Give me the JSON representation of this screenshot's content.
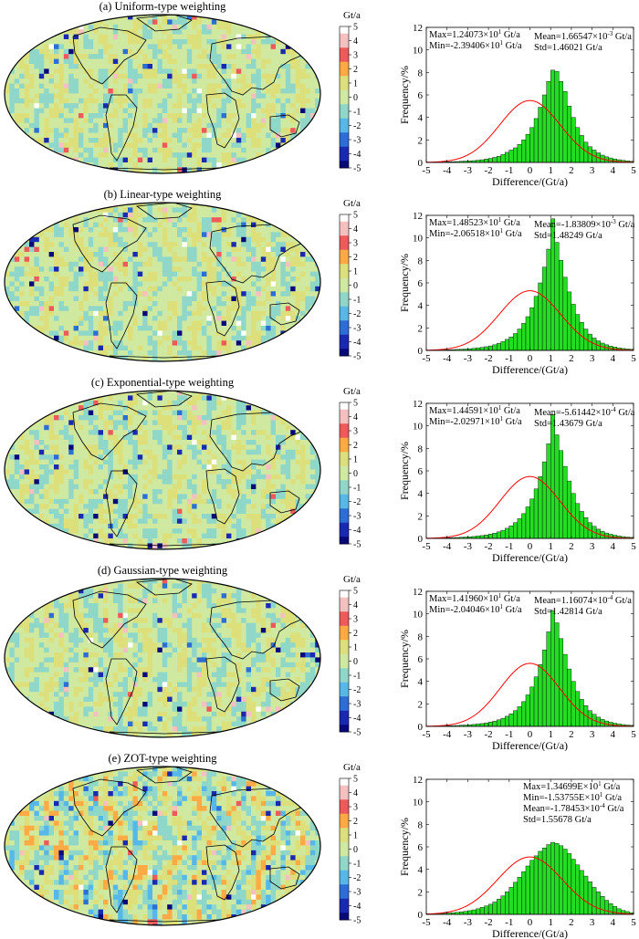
{
  "colorbar": {
    "unit": "Gt/a",
    "ticks": [
      "5",
      "4",
      "3",
      "2",
      "1",
      "0",
      "-1",
      "-2",
      "-3",
      "-4",
      "-5"
    ],
    "colors": [
      "#ffffff",
      "#f7c0c0",
      "#ee5a5a",
      "#ffaa44",
      "#dde07a",
      "#cfe9a0",
      "#8fd7c8",
      "#55b8e8",
      "#2b6fd6",
      "#1a2ab0",
      "#08087a"
    ]
  },
  "histogram_common": {
    "xlabel": "Difference/(Gt/a)",
    "ylabel": "Frequency/%",
    "xticks": [
      "-5",
      "-4",
      "-3",
      "-2",
      "-1",
      "0",
      "1",
      "2",
      "3",
      "4",
      "5"
    ],
    "yticks": [
      "0",
      "2",
      "4",
      "6",
      "8",
      "10",
      "12"
    ],
    "bar_color": "#22dd22",
    "curve_color": "#ff0000"
  },
  "chart_data": [
    {
      "type": "bar",
      "panel": "a",
      "map_title": "(a) Uniform-type weighting",
      "title": "(a) Uniform-type weighting",
      "xlabel": "Difference/(Gt/a)",
      "ylabel": "Frequency/%",
      "xlim": [
        -5,
        5
      ],
      "ylim": [
        0,
        12
      ],
      "bin_width": 0.2,
      "stats": {
        "max_prefix": "Max=1.24073×10",
        "max_exp": "1",
        "max_unit": " Gt/a",
        "min_prefix": "Min=-2.39406×10",
        "min_exp": "1",
        "min_unit": " Gt/a",
        "mean_prefix": "Mean=1.66547×10",
        "mean_exp": "-3",
        "mean_unit": " Gt/a",
        "std": "Std=1.46021 Gt/a"
      },
      "stats_layout": "two-column",
      "values": [
        0.02,
        0.02,
        0.03,
        0.04,
        0.05,
        0.06,
        0.07,
        0.08,
        0.1,
        0.12,
        0.14,
        0.16,
        0.2,
        0.24,
        0.3,
        0.36,
        0.45,
        0.55,
        0.7,
        0.9,
        1.1,
        1.3,
        1.6,
        2.0,
        2.5,
        3.1,
        3.9,
        4.9,
        6.0,
        7.2,
        8.2,
        8.1,
        7.2,
        6.3,
        5.0,
        4.0,
        3.1,
        2.4,
        1.8,
        1.4,
        1.1,
        0.85,
        0.65,
        0.5,
        0.4,
        0.3,
        0.24,
        0.18,
        0.14,
        0.1
      ],
      "normal_fit": {
        "mean": 0.0,
        "std": 1.46,
        "peak": 5.5
      }
    },
    {
      "type": "bar",
      "panel": "b",
      "map_title": "(b) Linear-type weighting",
      "title": "(b) Linear-type weighting",
      "xlabel": "Difference/(Gt/a)",
      "ylabel": "Frequency/%",
      "xlim": [
        -5,
        5
      ],
      "ylim": [
        0,
        12
      ],
      "bin_width": 0.2,
      "stats": {
        "max_prefix": "Max=1.48523×10",
        "max_exp": "1",
        "max_unit": " Gt/a",
        "min_prefix": "Min=-2.06518×10",
        "min_exp": "1",
        "min_unit": " Gt/a",
        "mean_prefix": "Mean=-1.83809×10",
        "mean_exp": "-3",
        "mean_unit": " Gt/a",
        "std": "Std=1.48249 Gt/a"
      },
      "stats_layout": "two-column",
      "values": [
        0.02,
        0.03,
        0.03,
        0.04,
        0.05,
        0.06,
        0.07,
        0.09,
        0.1,
        0.12,
        0.15,
        0.18,
        0.22,
        0.27,
        0.33,
        0.4,
        0.5,
        0.62,
        0.78,
        0.98,
        1.2,
        1.5,
        1.9,
        2.4,
        3.0,
        3.8,
        4.8,
        6.0,
        7.4,
        9.0,
        11.7,
        9.6,
        8.0,
        6.5,
        5.2,
        4.1,
        3.2,
        2.5,
        1.9,
        1.45,
        1.1,
        0.85,
        0.65,
        0.5,
        0.38,
        0.3,
        0.22,
        0.17,
        0.13,
        0.1
      ],
      "normal_fit": {
        "mean": 0.0,
        "std": 1.48,
        "peak": 5.3
      }
    },
    {
      "type": "bar",
      "panel": "c",
      "map_title": "(c) Exponential-type weighting",
      "title": "(c) Exponential-type weighting",
      "xlabel": "Difference/(Gt/a)",
      "ylabel": "Frequency/%",
      "xlim": [
        -5,
        5
      ],
      "ylim": [
        0,
        12
      ],
      "bin_width": 0.2,
      "stats": {
        "max_prefix": "Max=1.44591×10",
        "max_exp": "1",
        "max_unit": " Gt/a",
        "min_prefix": "Min=-2.02971×10",
        "min_exp": "1",
        "min_unit": " Gt/a",
        "mean_prefix": "Mean=-5.61442×10",
        "mean_exp": "-4",
        "mean_unit": " Gt/a",
        "std": "Std=1.43679 Gt/a"
      },
      "stats_layout": "two-column",
      "values": [
        0.02,
        0.02,
        0.03,
        0.04,
        0.05,
        0.06,
        0.07,
        0.08,
        0.1,
        0.12,
        0.14,
        0.17,
        0.21,
        0.25,
        0.31,
        0.38,
        0.47,
        0.58,
        0.72,
        0.9,
        1.12,
        1.4,
        1.75,
        2.2,
        2.8,
        3.5,
        4.4,
        5.5,
        6.8,
        8.4,
        11.0,
        9.2,
        7.8,
        6.4,
        5.1,
        4.0,
        3.1,
        2.4,
        1.85,
        1.4,
        1.08,
        0.82,
        0.62,
        0.48,
        0.37,
        0.28,
        0.21,
        0.16,
        0.12,
        0.09
      ],
      "normal_fit": {
        "mean": 0.0,
        "std": 1.44,
        "peak": 5.5
      }
    },
    {
      "type": "bar",
      "panel": "d",
      "map_title": "(d) Gaussian-type weighting",
      "title": "(d) Gaussian-type weighting",
      "xlabel": "Difference/(Gt/a)",
      "ylabel": "Frequency/%",
      "xlim": [
        -5,
        5
      ],
      "ylim": [
        0,
        12
      ],
      "bin_width": 0.2,
      "stats": {
        "max_prefix": "Max=1.41960×10",
        "max_exp": "1",
        "max_unit": " Gt/a",
        "min_prefix": "Min=-2.04046×10",
        "min_exp": "1",
        "min_unit": " Gt/a",
        "mean_prefix": "Mean=1.16074×10",
        "mean_exp": "-4",
        "mean_unit": " Gt/a",
        "std": "Std=1.42814 Gt/a"
      },
      "stats_layout": "two-column",
      "values": [
        0.02,
        0.02,
        0.03,
        0.04,
        0.05,
        0.06,
        0.07,
        0.08,
        0.1,
        0.12,
        0.14,
        0.17,
        0.21,
        0.25,
        0.31,
        0.38,
        0.47,
        0.58,
        0.72,
        0.9,
        1.12,
        1.4,
        1.75,
        2.2,
        2.8,
        3.5,
        4.4,
        5.5,
        6.8,
        8.4,
        10.3,
        9.2,
        7.8,
        6.4,
        5.1,
        4.0,
        3.1,
        2.4,
        1.85,
        1.4,
        1.08,
        0.82,
        0.62,
        0.48,
        0.37,
        0.28,
        0.21,
        0.16,
        0.12,
        0.09
      ],
      "normal_fit": {
        "mean": 0.0,
        "std": 1.43,
        "peak": 5.6
      }
    },
    {
      "type": "bar",
      "panel": "e",
      "map_title": "(e) ZOT-type weighting",
      "title": "(e) ZOT-type weighting",
      "xlabel": "Difference/(Gt/a)",
      "ylabel": "Frequency/%",
      "xlim": [
        -5,
        5
      ],
      "ylim": [
        0,
        12
      ],
      "bin_width": 0.2,
      "stats": {
        "max_prefix": "Max=1.34699E×10",
        "max_exp": "1",
        "max_unit": " Gt/a",
        "min_prefix": "Min=-1.53755E×10",
        "min_exp": "1",
        "min_unit": " Gt/a",
        "mean_prefix": "Mean=-1.78453×10",
        "mean_exp": "-4",
        "mean_unit": " Gt/a",
        "std": "Std=1.55678 Gt/a"
      },
      "stats_layout": "single-column-right",
      "values": [
        0.04,
        0.05,
        0.06,
        0.08,
        0.1,
        0.12,
        0.15,
        0.18,
        0.22,
        0.27,
        0.33,
        0.4,
        0.5,
        0.62,
        0.75,
        0.9,
        1.1,
        1.35,
        1.65,
        2.0,
        2.4,
        2.85,
        3.3,
        3.8,
        4.3,
        4.8,
        5.2,
        5.6,
        5.9,
        6.2,
        6.4,
        6.3,
        6.1,
        5.8,
        5.4,
        4.9,
        4.4,
        3.9,
        3.4,
        2.9,
        2.4,
        2.0,
        1.6,
        1.25,
        0.95,
        0.7,
        0.5,
        0.35,
        0.25,
        0.15
      ],
      "normal_fit": {
        "mean": 0.0,
        "std": 1.56,
        "peak": 5.1
      }
    }
  ]
}
